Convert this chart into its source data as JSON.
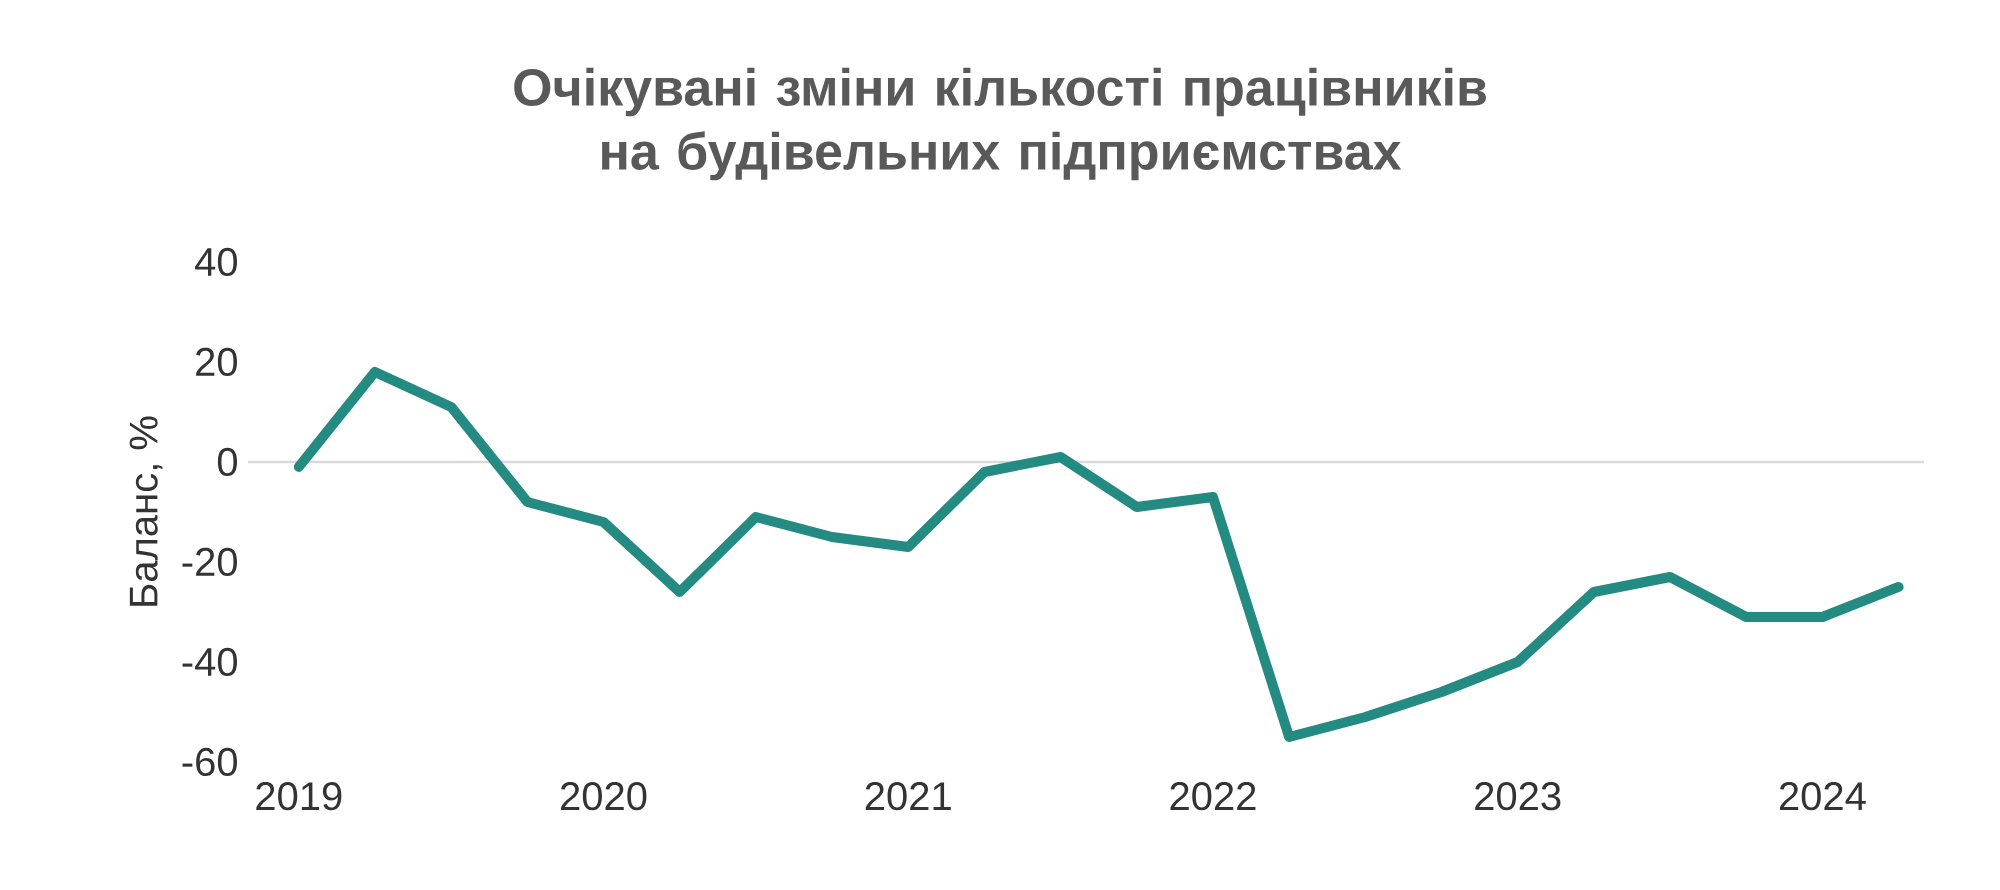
{
  "chart_data": {
    "type": "line",
    "title": "Очікувані зміни кількості працівників на будівельних підприємствах",
    "ylabel": "Баланс, %",
    "x": [
      "2019-01",
      "2019-04",
      "2019-07",
      "2019-10",
      "2020-01",
      "2020-04",
      "2020-07",
      "2020-10",
      "2021-01",
      "2021-04",
      "2021-07",
      "2021-10",
      "2022-01",
      "2022-04",
      "2022-07",
      "2022-10",
      "2023-01",
      "2023-04",
      "2023-07",
      "2023-10",
      "2024-01",
      "2024-04"
    ],
    "series": [
      {
        "color": "#238b82",
        "values": [
          -1,
          18,
          11,
          -8,
          -12,
          -26,
          -11,
          -15,
          -17,
          -2,
          1,
          -9,
          -7,
          -55,
          -51,
          -46,
          -40,
          -26,
          -23,
          -31,
          -31,
          -25
        ]
      }
    ],
    "xlim": [
      "2018-11",
      "2024-05"
    ],
    "xticks": [
      "2019",
      "2020",
      "2021",
      "2022",
      "2023",
      "2024"
    ],
    "ylim": [
      -60,
      40
    ],
    "yticks": [
      -60,
      -40,
      -20,
      0,
      20,
      40
    ],
    "ref_lines": [
      {
        "axis": "y",
        "value": 0,
        "color": "#d9d9d9"
      }
    ]
  }
}
